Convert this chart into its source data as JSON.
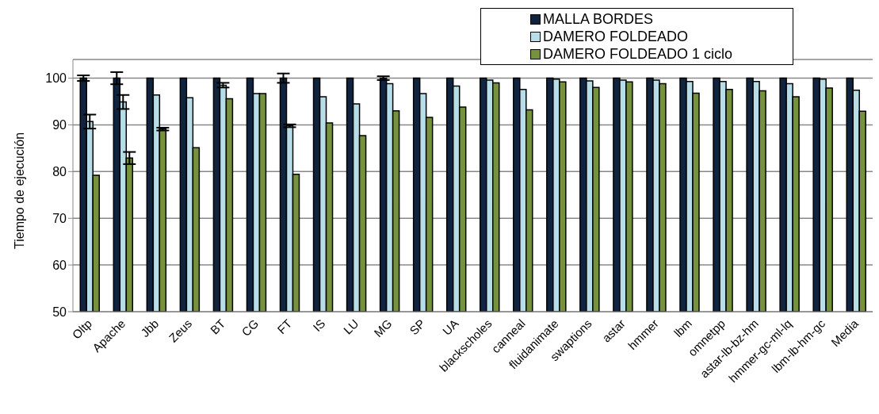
{
  "chart_data": {
    "type": "bar",
    "ylabel": "Tiempo de ejecución",
    "categories": [
      "Oltp",
      "Apache",
      "Jbb",
      "Zeus",
      "BT",
      "CG",
      "FT",
      "IS",
      "LU",
      "MG",
      "SP",
      "UA",
      "blackscholes",
      "canneal",
      "fluidanimate",
      "swaptions",
      "astar",
      "hmmer",
      "lbm",
      "omnetpp",
      "astar-lb-bz-hm",
      "hmmer-gc-ml-lq",
      "lbm-lb-hm-gc",
      "Media"
    ],
    "series": [
      {
        "name": "MALLA BORDES",
        "color": "#10243f",
        "values": [
          100,
          100,
          100,
          100,
          100,
          100,
          100,
          100,
          100,
          100,
          100,
          100,
          100,
          100,
          100,
          100,
          100,
          100,
          100,
          100,
          100,
          100,
          100,
          100
        ],
        "errors": [
          0.6,
          1.3,
          null,
          null,
          null,
          null,
          1,
          null,
          null,
          0.4,
          null,
          null,
          null,
          null,
          null,
          null,
          null,
          null,
          null,
          null,
          null,
          null,
          null,
          null
        ]
      },
      {
        "name": "DAMERO FOLDEADO",
        "color": "#b7dde8",
        "values": [
          90.7,
          94.9,
          96.4,
          95.8,
          98.5,
          96.7,
          89.8,
          96.0,
          94.5,
          98.8,
          96.7,
          98.3,
          99.6,
          97.6,
          99.8,
          99.4,
          99.6,
          99.6,
          99.3,
          99.3,
          99.3,
          98.8,
          99.8,
          97.4
        ],
        "errors": [
          1.5,
          1.5,
          null,
          null,
          0.5,
          null,
          0.3,
          null,
          null,
          null,
          null,
          null,
          null,
          null,
          null,
          null,
          null,
          null,
          null,
          null,
          null,
          null,
          null,
          null
        ]
      },
      {
        "name": "DAMERO FOLDEADO 1 ciclo",
        "color": "#76923c",
        "values": [
          79.2,
          82.9,
          89.1,
          85.1,
          95.6,
          96.7,
          79.4,
          90.4,
          87.7,
          93.0,
          91.6,
          93.8,
          99.0,
          93.2,
          99.2,
          98.0,
          99.2,
          98.8,
          96.8,
          97.6,
          97.3,
          96.0,
          97.9,
          92.9
        ],
        "errors": [
          null,
          1.3,
          0.3,
          null,
          null,
          null,
          null,
          null,
          null,
          null,
          null,
          null,
          null,
          null,
          null,
          null,
          null,
          null,
          null,
          null,
          null,
          null,
          null,
          null
        ]
      }
    ],
    "ylim": [
      50,
      104
    ],
    "yticks": [
      50,
      60,
      70,
      80,
      90,
      100
    ],
    "grid": "y",
    "legend": "top right"
  }
}
